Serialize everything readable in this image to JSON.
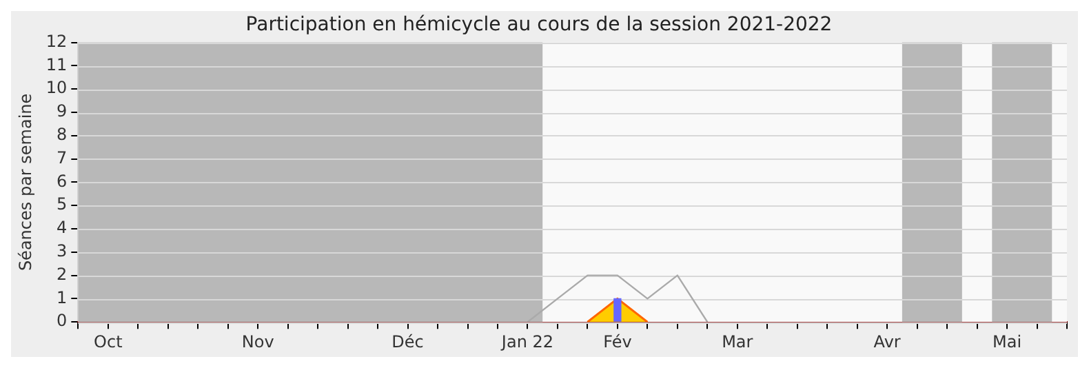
{
  "chart_data": {
    "type": "line",
    "title": "Participation en hémicycle au cours de la session 2021-2022",
    "ylabel": "Séances par semaine",
    "categories": [
      null,
      "Oct",
      null,
      null,
      null,
      null,
      "Nov",
      null,
      null,
      null,
      null,
      "Déc",
      null,
      null,
      null,
      "Jan 22",
      null,
      null,
      "Fév",
      null,
      null,
      null,
      "Mar",
      null,
      null,
      null,
      null,
      "Avr",
      null,
      null,
      null,
      "Mai",
      null,
      null
    ],
    "ylim": [
      0,
      12
    ],
    "yticks": [
      0,
      1,
      2,
      3,
      4,
      5,
      6,
      7,
      8,
      9,
      10,
      11,
      12
    ],
    "grid": "y",
    "marker": "none",
    "series": [
      {
        "color": "#aaaaaa",
        "values": [
          null,
          null,
          null,
          null,
          null,
          null,
          null,
          null,
          null,
          null,
          null,
          null,
          null,
          null,
          null,
          0,
          1,
          2,
          2,
          1,
          2,
          0,
          null,
          null,
          null,
          null,
          null,
          null,
          null,
          null,
          null,
          null,
          null,
          null
        ]
      },
      {
        "type": "area",
        "color": "#ffcc00",
        "values": [
          null,
          null,
          null,
          null,
          null,
          null,
          null,
          null,
          null,
          null,
          null,
          null,
          null,
          null,
          null,
          null,
          null,
          0,
          1,
          0,
          null,
          null,
          null,
          null,
          null,
          null,
          null,
          null,
          null,
          null,
          null,
          null,
          null,
          null
        ]
      },
      {
        "type": "bar",
        "color": "#6666ff",
        "values": [
          null,
          null,
          null,
          null,
          null,
          null,
          null,
          null,
          null,
          null,
          null,
          null,
          null,
          null,
          null,
          null,
          null,
          null,
          1,
          null,
          null,
          null,
          null,
          null,
          null,
          null,
          null,
          null,
          null,
          null,
          null,
          null,
          null,
          null
        ]
      }
    ]
  }
}
